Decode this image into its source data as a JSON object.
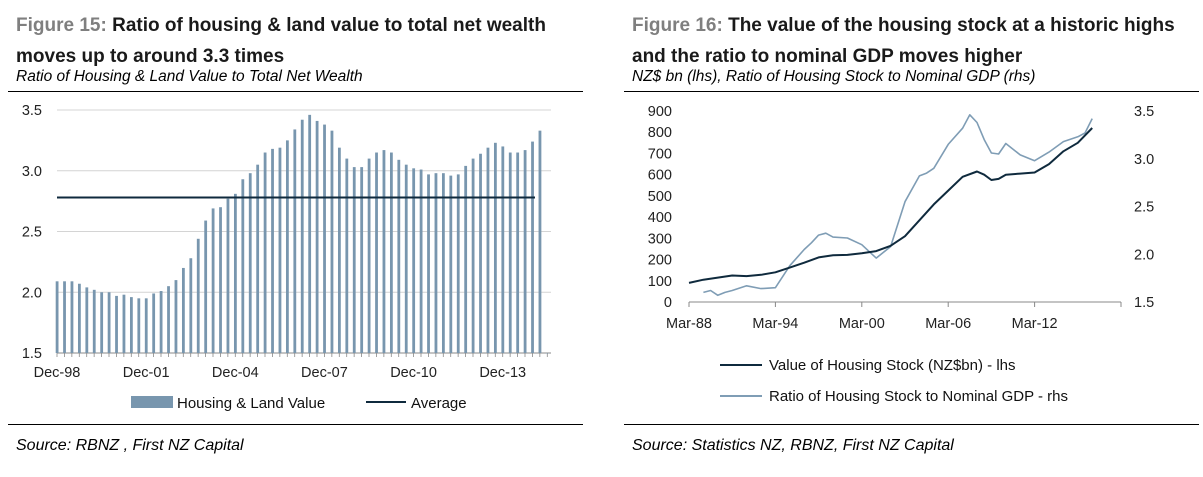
{
  "colors": {
    "bar": "#7896ae",
    "dark_line": "#0f2a3d",
    "light_line": "#7f9db5",
    "grid": "#d4d4d4"
  },
  "left": {
    "figure_number": "Figure 15:",
    "title": "Ratio of housing & land value to total net wealth moves up to around 3.3 times",
    "subtitle": "Ratio of Housing & Land Value to Total Net Wealth",
    "source": "Source: RBNZ , First NZ Capital"
  },
  "right": {
    "figure_number": "Figure 16:",
    "title": "The value of the housing stock at a historic highs and the ratio to nominal GDP moves higher",
    "subtitle": "NZ$ bn (lhs), Ratio of Housing Stock to Nominal GDP (rhs)",
    "source": "Source: Statistics NZ, RBNZ, First NZ Capital"
  },
  "chart_data": [
    {
      "type": "bar",
      "title": "Ratio of Housing & Land Value to Total Net Wealth",
      "ylim": [
        1.5,
        3.5
      ],
      "yticks": [
        "1.5",
        "2.0",
        "2.5",
        "3.0",
        "3.5"
      ],
      "x_tick_labels": [
        "Dec-98",
        "Dec-01",
        "Dec-04",
        "Dec-07",
        "Dec-10",
        "Dec-13"
      ],
      "x_tick_every": 12,
      "average": 2.78,
      "legend": [
        "Housing & Land Value",
        "Average"
      ],
      "values": [
        2.09,
        2.09,
        2.09,
        2.07,
        2.04,
        2.02,
        2.0,
        2.0,
        1.97,
        1.98,
        1.96,
        1.95,
        1.95,
        1.99,
        2.01,
        2.05,
        2.1,
        2.2,
        2.28,
        2.44,
        2.59,
        2.69,
        2.7,
        2.77,
        2.81,
        2.93,
        2.98,
        3.05,
        3.15,
        3.18,
        3.19,
        3.25,
        3.34,
        3.42,
        3.46,
        3.41,
        3.38,
        3.33,
        3.19,
        3.1,
        3.03,
        3.03,
        3.1,
        3.15,
        3.17,
        3.15,
        3.09,
        3.05,
        3.02,
        3.01,
        2.97,
        2.98,
        2.98,
        2.96,
        2.97,
        3.04,
        3.1,
        3.14,
        3.19,
        3.23,
        3.2,
        3.15,
        3.15,
        3.17,
        3.24,
        3.33,
        1.5
      ]
    },
    {
      "type": "line",
      "title": "The value of the housing stock",
      "lhs_ylim": [
        0,
        900
      ],
      "lhs_yticks": [
        "0",
        "100",
        "200",
        "300",
        "400",
        "500",
        "600",
        "700",
        "800",
        "900"
      ],
      "rhs_ylim": [
        1.5,
        3.5
      ],
      "rhs_yticks": [
        "1.5",
        "2.0",
        "2.5",
        "3.0",
        "3.5"
      ],
      "xlim": [
        1988,
        2018
      ],
      "x_tick_values": [
        1988,
        1994,
        2000,
        2006,
        2012
      ],
      "x_tick_labels": [
        "Mar-88",
        "Mar-94",
        "Mar-00",
        "Mar-06",
        "Mar-12"
      ],
      "series": [
        {
          "name": "Value of Housing Stock (NZ$bn) - lhs",
          "axis": "lhs",
          "x": [
            1988,
            1989,
            1990,
            1991,
            1992,
            1993,
            1994,
            1995,
            1996,
            1997,
            1998,
            1999,
            2000,
            2001,
            2002,
            2003,
            2004,
            2005,
            2006,
            2007,
            2008,
            2008.5,
            2009,
            2009.5,
            2010,
            2011,
            2012,
            2013,
            2014,
            2015,
            2016
          ],
          "values": [
            90,
            105,
            115,
            125,
            122,
            128,
            140,
            162,
            185,
            210,
            220,
            222,
            230,
            240,
            265,
            310,
            385,
            460,
            525,
            590,
            615,
            600,
            575,
            580,
            600,
            605,
            610,
            650,
            710,
            750,
            820
          ]
        },
        {
          "name": "Ratio of Housing Stock to Nominal GDP - rhs",
          "axis": "rhs",
          "x": [
            1989,
            1989.5,
            1990,
            1990.5,
            1991,
            1992,
            1993,
            1994,
            1995,
            1996,
            1996.5,
            1997,
            1997.5,
            1998,
            1999,
            2000,
            2001,
            2002,
            2003,
            2004,
            2004.5,
            2005,
            2006,
            2007,
            2007.5,
            2008,
            2008.5,
            2009,
            2009.5,
            2010,
            2011,
            2012,
            2013,
            2014,
            2015,
            2015.5,
            2016
          ],
          "values": [
            1.6,
            1.62,
            1.57,
            1.6,
            1.62,
            1.67,
            1.64,
            1.65,
            1.88,
            2.05,
            2.12,
            2.2,
            2.22,
            2.18,
            2.17,
            2.1,
            1.96,
            2.08,
            2.55,
            2.82,
            2.85,
            2.9,
            3.15,
            3.32,
            3.46,
            3.38,
            3.2,
            3.06,
            3.05,
            3.16,
            3.04,
            2.98,
            3.07,
            3.18,
            3.23,
            3.27,
            3.42
          ]
        }
      ]
    }
  ]
}
